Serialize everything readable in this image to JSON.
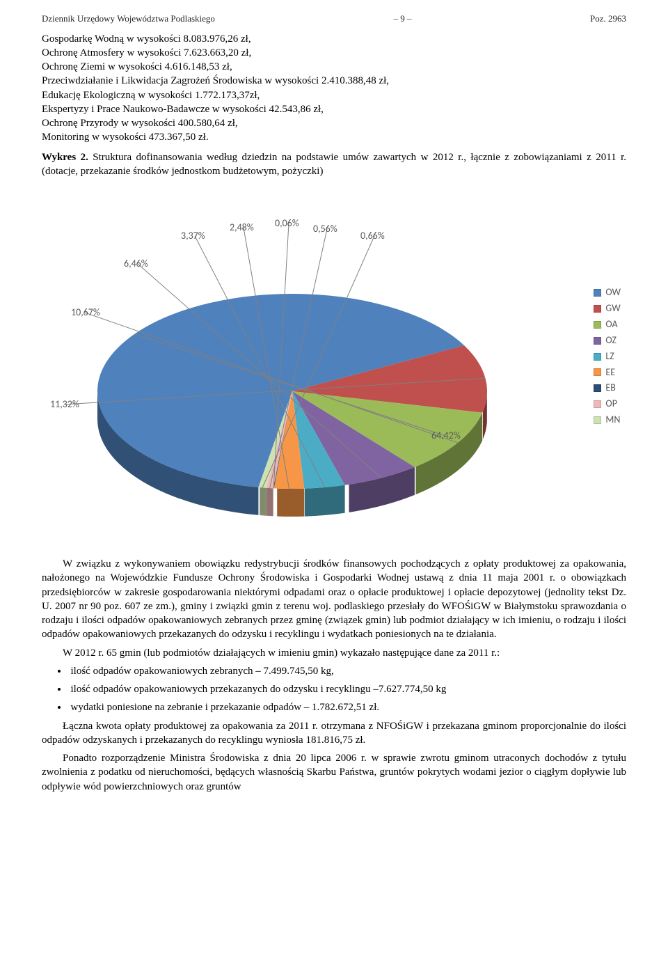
{
  "header": {
    "left": "Dziennik Urzędowy Województwa Podlaskiego",
    "center": "– 9 –",
    "right": "Poz. 2963"
  },
  "intro_lines": [
    "Gospodarkę Wodną w wysokości 8.083.976,26 zł,",
    "Ochronę Atmosfery w wysokości 7.623.663,20 zł,",
    "Ochronę Ziemi w wysokości 4.616.148,53 zł,",
    "Przeciwdziałanie i Likwidacja Zagrożeń Środowiska w wysokości 2.410.388,48 zł,",
    "Edukację Ekologiczną w wysokości 1.772.173,37zł,",
    "Ekspertyzy i Prace Naukowo-Badawcze w wysokości 42.543,86 zł,",
    "Ochronę Przyrody w wysokości 400.580,64 zł,",
    "Monitoring w wysokości 473.367,50 zł."
  ],
  "caption": {
    "label": "Wykres 2.",
    "text": "Struktura dofinansowania według dziedzin na podstawie umów zawartych w 2012 r., łącznie z zobowiązaniami z 2011 r. (dotacje, przekazanie środków jednostkom budżetowym, pożyczki)"
  },
  "chart": {
    "type": "pie-3d",
    "background_color": "#ffffff",
    "slices": [
      {
        "code": "OW",
        "label": "64,42%",
        "value": 64.42,
        "color": "#4f81bd"
      },
      {
        "code": "GW",
        "label": "11,32%",
        "value": 11.32,
        "color": "#c0504d"
      },
      {
        "code": "OA",
        "label": "10,67%",
        "value": 10.67,
        "color": "#9bbb59"
      },
      {
        "code": "OZ",
        "label": "6,46%",
        "value": 6.46,
        "color": "#8064a2"
      },
      {
        "code": "LZ",
        "label": "3,37%",
        "value": 3.37,
        "color": "#4bacc6"
      },
      {
        "code": "EE",
        "label": "2,48%",
        "value": 2.48,
        "color": "#f79646"
      },
      {
        "code": "EB",
        "label": "0,06%",
        "value": 0.06,
        "color": "#2c4d75"
      },
      {
        "code": "OP",
        "label": "0,56%",
        "value": 0.56,
        "color": "#eeb8b8"
      },
      {
        "code": "MN",
        "label": "0,66%",
        "value": 0.66,
        "color": "#cde2b0"
      }
    ],
    "legend_items": [
      {
        "code": "OW",
        "color": "#4f81bd"
      },
      {
        "code": "GW",
        "color": "#c0504d"
      },
      {
        "code": "OA",
        "color": "#9bbb59"
      },
      {
        "code": "OZ",
        "color": "#8064a2"
      },
      {
        "code": "LZ",
        "color": "#4bacc6"
      },
      {
        "code": "EE",
        "color": "#f79646"
      },
      {
        "code": "EB",
        "color": "#2c4d75"
      },
      {
        "code": "OP",
        "color": "#eeb8b8"
      },
      {
        "code": "MN",
        "color": "#cde2b0"
      }
    ],
    "label_fontsize": 14,
    "label_color": "#595959",
    "leader_color": "#808080"
  },
  "para1": "W związku z wykonywaniem obowiązku redystrybucji środków finansowych pochodzących z opłaty produktowej za opakowania, nałożonego na Wojewódzkie Fundusze Ochrony Środowiska i Gospodarki Wodnej ustawą z dnia 11 maja 2001 r. o obowiązkach przedsiębiorców w zakresie gospodarowania niektórymi odpadami oraz o opłacie produktowej i opłacie depozytowej (jednolity tekst Dz. U. 2007 nr 90 poz. 607 ze zm.), gminy i związki gmin z terenu woj. podlaskiego przesłały do WFOŚiGW w Białymstoku sprawozdania o rodzaju i ilości odpadów opakowaniowych zebranych przez gminę (związek gmin) lub podmiot działający w ich imieniu, o rodzaju i ilości odpadów opakowaniowych przekazanych do odzysku i recyklingu i wydatkach poniesionych na te działania.",
  "para2": "W 2012 r. 65 gmin (lub podmiotów działających w imieniu gmin) wykazało następujące dane za 2011 r.:",
  "bullets": [
    "ilość odpadów opakowaniowych zebranych – 7.499.745,50 kg,",
    "ilość odpadów opakowaniowych przekazanych do odzysku i recyklingu –7.627.774,50 kg",
    "wydatki poniesione na zebranie i przekazanie odpadów – 1.782.672,51 zł."
  ],
  "para3": "Łączna kwota opłaty produktowej za opakowania za 2011 r. otrzymana z NFOŚiGW i przekazana gminom proporcjonalnie do ilości odpadów odzyskanych i przekazanych do recyklingu wyniosła 181.816,75 zł.",
  "para4": "Ponadto rozporządzenie Ministra Środowiska z dnia 20 lipca 2006 r. w sprawie zwrotu gminom utraconych dochodów z tytułu zwolnienia z podatku od nieruchomości, będących własnością Skarbu Państwa, gruntów pokrytych wodami jezior o ciągłym dopływie lub odpływie wód powierzchniowych oraz gruntów"
}
